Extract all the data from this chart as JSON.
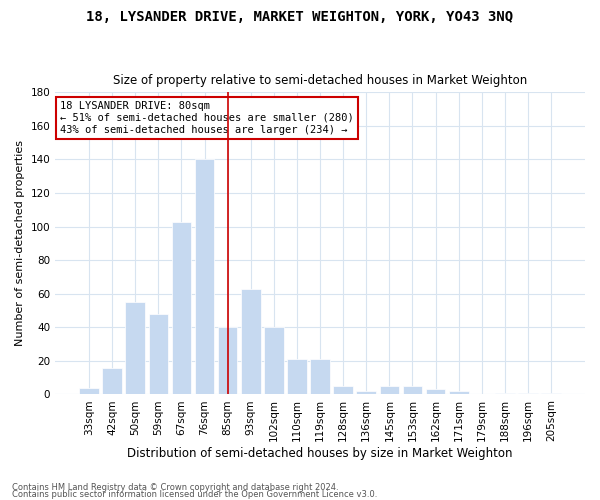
{
  "title": "18, LYSANDER DRIVE, MARKET WEIGHTON, YORK, YO43 3NQ",
  "subtitle": "Size of property relative to semi-detached houses in Market Weighton",
  "xlabel": "Distribution of semi-detached houses by size in Market Weighton",
  "ylabel": "Number of semi-detached properties",
  "footnote1": "Contains HM Land Registry data © Crown copyright and database right 2024.",
  "footnote2": "Contains public sector information licensed under the Open Government Licence v3.0.",
  "categories": [
    "33sqm",
    "42sqm",
    "50sqm",
    "59sqm",
    "67sqm",
    "76sqm",
    "85sqm",
    "93sqm",
    "102sqm",
    "110sqm",
    "119sqm",
    "128sqm",
    "136sqm",
    "145sqm",
    "153sqm",
    "162sqm",
    "171sqm",
    "179sqm",
    "188sqm",
    "196sqm",
    "205sqm"
  ],
  "values": [
    4,
    16,
    55,
    48,
    103,
    140,
    40,
    63,
    40,
    21,
    21,
    5,
    2,
    5,
    5,
    3,
    2,
    0,
    1,
    1,
    1
  ],
  "bar_color": "#c6d9f0",
  "vline_x": 6.0,
  "annotation_title": "18 LYSANDER DRIVE: 80sqm",
  "annotation_line1": "← 51% of semi-detached houses are smaller (280)",
  "annotation_line2": "43% of semi-detached houses are larger (234) →",
  "ylim": [
    0,
    180
  ],
  "yticks": [
    0,
    20,
    40,
    60,
    80,
    100,
    120,
    140,
    160,
    180
  ],
  "grid_color": "#d8e4f0",
  "background_color": "#ffffff",
  "title_fontsize": 10,
  "subtitle_fontsize": 8.5,
  "annotation_box_color": "#ffffff",
  "annotation_box_edge": "#cc0000",
  "vline_color": "#cc0000",
  "tick_fontsize": 7.5,
  "ylabel_fontsize": 8,
  "xlabel_fontsize": 8.5
}
